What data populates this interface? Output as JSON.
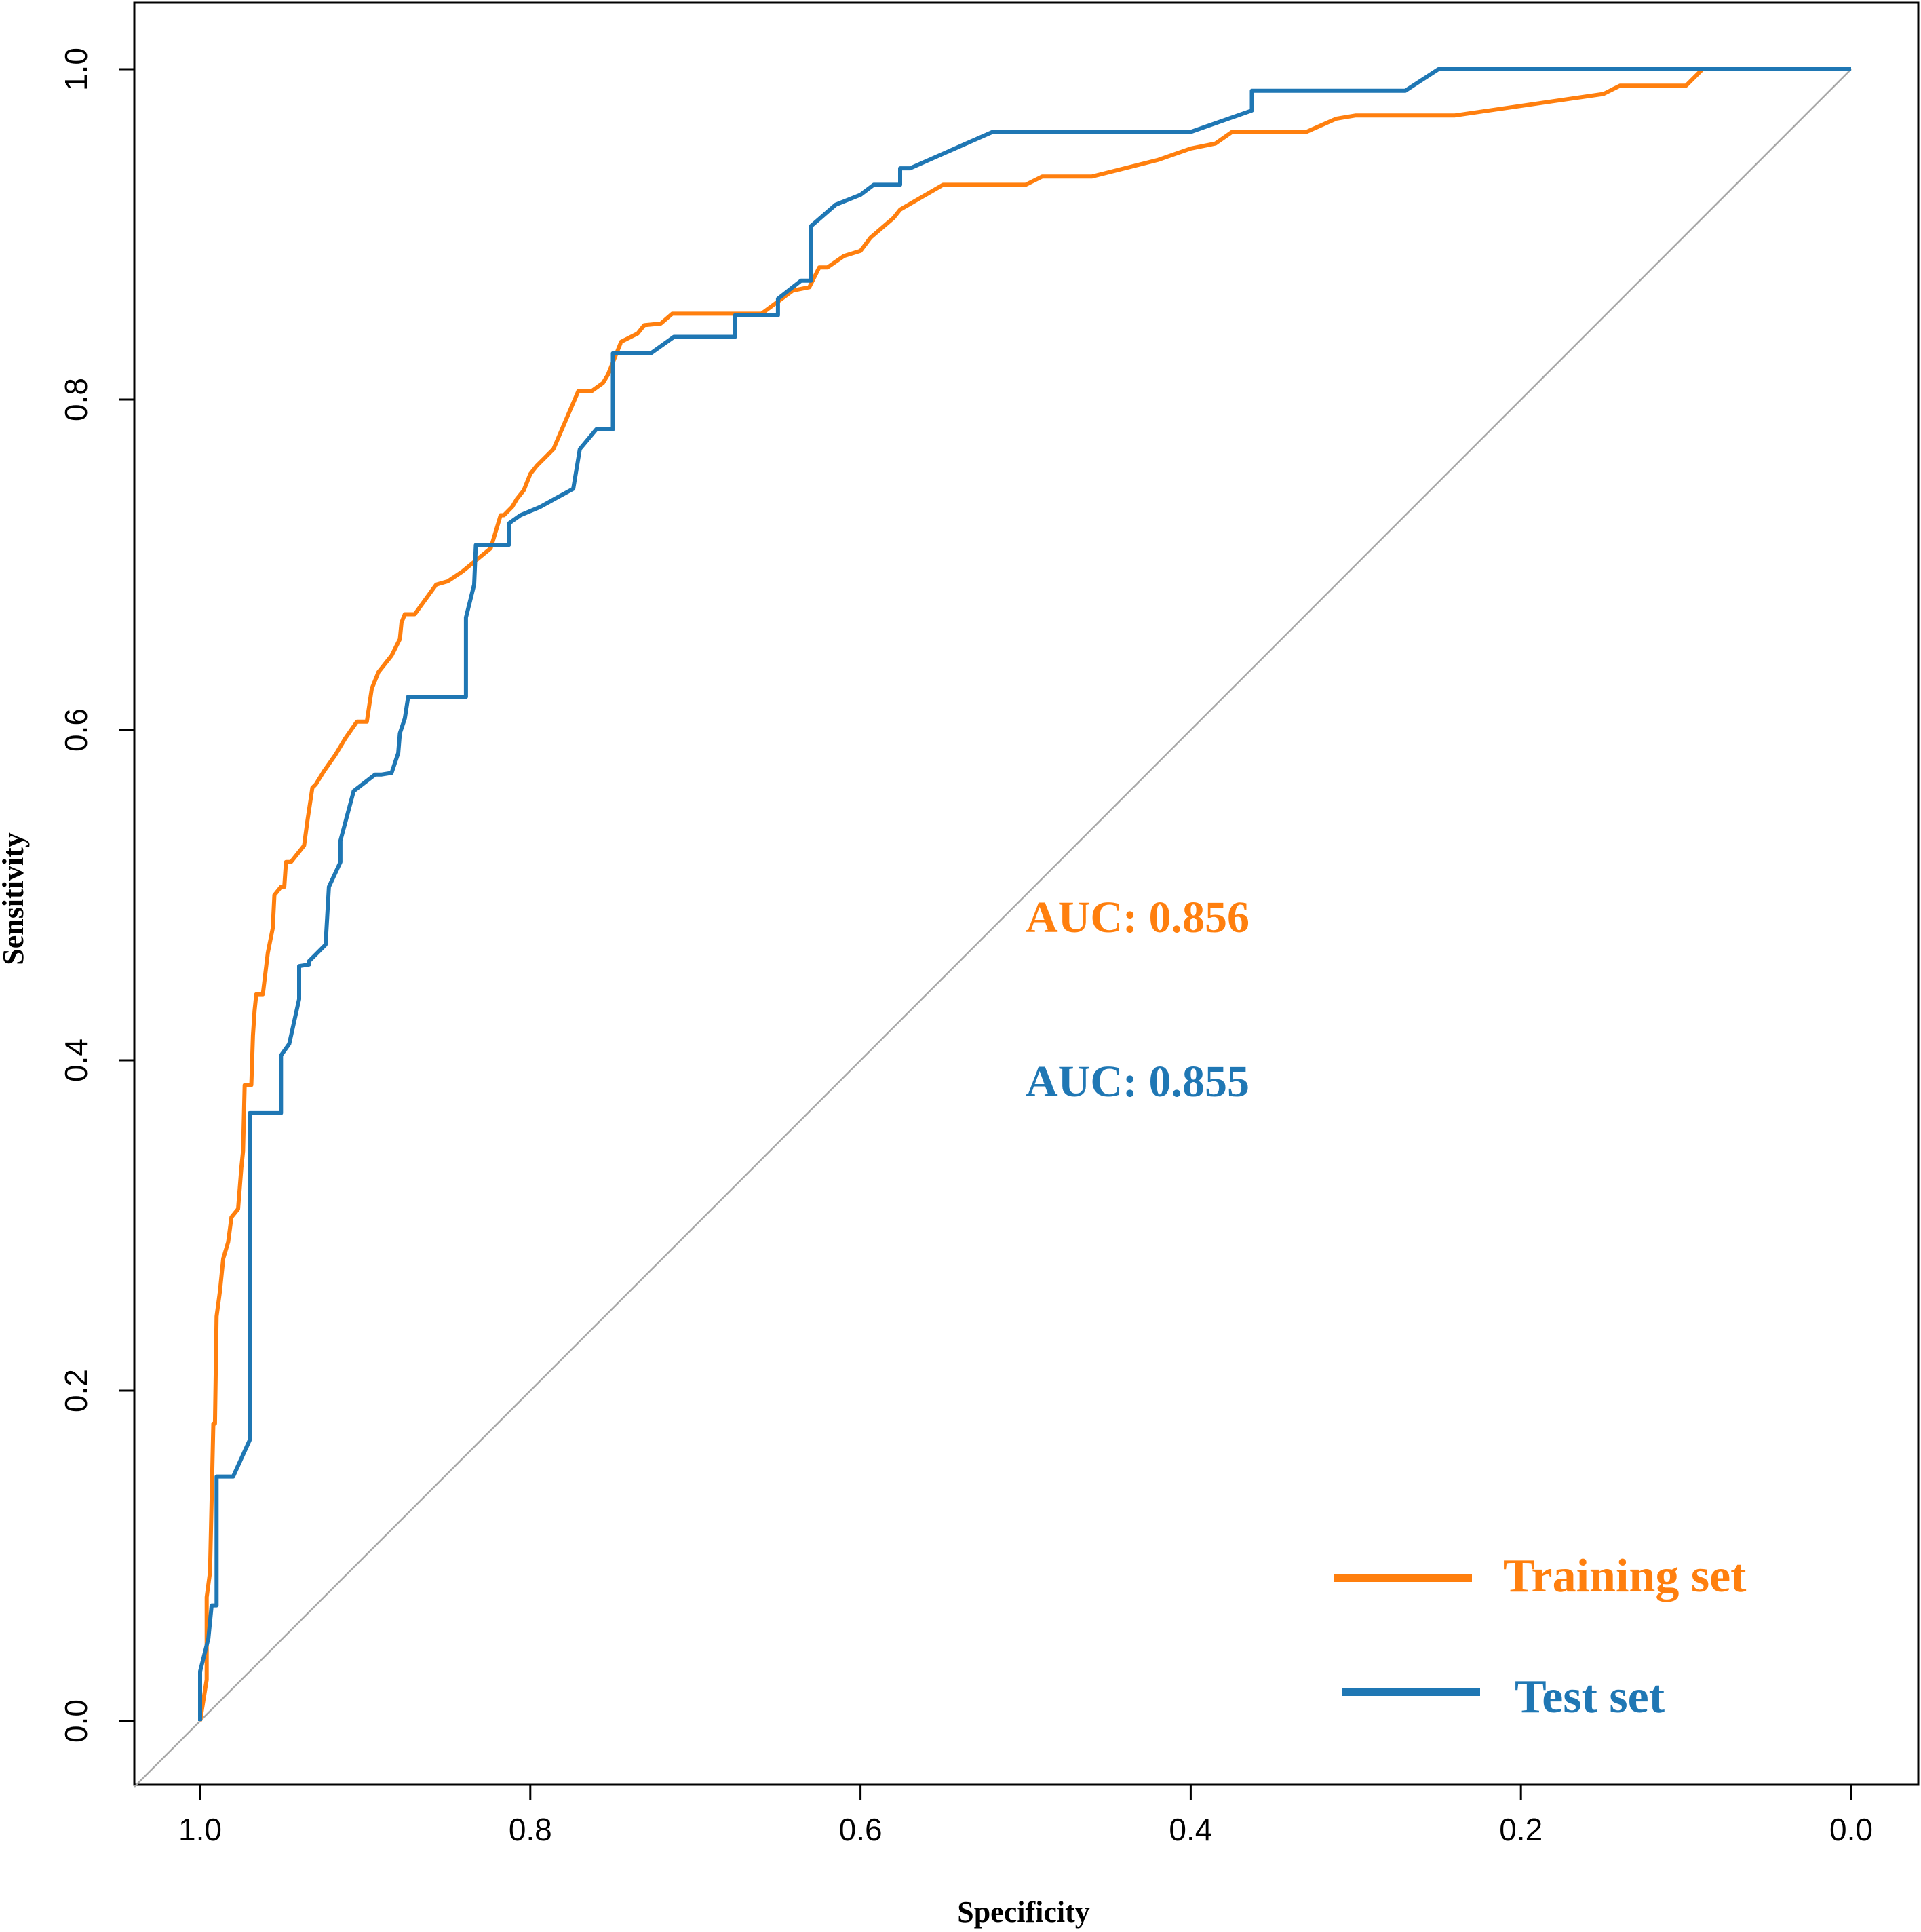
{
  "chart_data": {
    "type": "line",
    "title": "",
    "xlabel": "Specificity",
    "ylabel": "Sensitivity",
    "xlim": [
      1.0,
      0.0
    ],
    "ylim": [
      0.0,
      1.0
    ],
    "x_reversed": true,
    "x_ticks": [
      1.0,
      0.8,
      0.6,
      0.4,
      0.2,
      0.0
    ],
    "x_tick_labels": [
      "1.0",
      "0.8",
      "0.6",
      "0.4",
      "0.2",
      "0.0"
    ],
    "y_ticks": [
      0.0,
      0.2,
      0.4,
      0.6,
      0.8,
      1.0
    ],
    "y_tick_labels": [
      "0.0",
      "0.2",
      "0.4",
      "0.6",
      "0.8",
      "1.0"
    ],
    "grid": false,
    "legend_position": "bottom-right",
    "reference_line": {
      "from": [
        1.0,
        0.0
      ],
      "to": [
        0.0,
        1.0
      ],
      "color": "#a0a0a0"
    },
    "series": [
      {
        "name": "Training set",
        "color": "#ff7f0e",
        "auc_label": "AUC: 0.856",
        "specificity": [
          1.0,
          0.996,
          0.996,
          0.994,
          0.992,
          0.991,
          0.99,
          0.988,
          0.986,
          0.983,
          0.981,
          0.977,
          0.975,
          0.974,
          0.973,
          0.969,
          0.968,
          0.967,
          0.966,
          0.962,
          0.959,
          0.958,
          0.956,
          0.955,
          0.951,
          0.949,
          0.948,
          0.945,
          0.941,
          0.937,
          0.935,
          0.932,
          0.93,
          0.925,
          0.918,
          0.912,
          0.905,
          0.899,
          0.896,
          0.892,
          0.884,
          0.879,
          0.878,
          0.876,
          0.87,
          0.857,
          0.85,
          0.841,
          0.824,
          0.818,
          0.816,
          0.811,
          0.808,
          0.804,
          0.8,
          0.796,
          0.791,
          0.786,
          0.771,
          0.763,
          0.756,
          0.753,
          0.749,
          0.745,
          0.735,
          0.731,
          0.721,
          0.714,
          0.699,
          0.66,
          0.641,
          0.631,
          0.625,
          0.62,
          0.61,
          0.6,
          0.594,
          0.58,
          0.576,
          0.55,
          0.5,
          0.49,
          0.46,
          0.42,
          0.4,
          0.385,
          0.375,
          0.33,
          0.312,
          0.3,
          0.24,
          0.15,
          0.14,
          0.1,
          0.09,
          0.0
        ],
        "sensitivity": [
          0.0,
          0.025,
          0.075,
          0.09,
          0.18,
          0.18,
          0.245,
          0.26,
          0.28,
          0.29,
          0.305,
          0.31,
          0.335,
          0.345,
          0.385,
          0.385,
          0.415,
          0.43,
          0.44,
          0.44,
          0.465,
          0.47,
          0.48,
          0.5,
          0.505,
          0.505,
          0.52,
          0.52,
          0.525,
          0.53,
          0.545,
          0.565,
          0.567,
          0.575,
          0.585,
          0.595,
          0.605,
          0.605,
          0.625,
          0.635,
          0.645,
          0.655,
          0.665,
          0.67,
          0.67,
          0.688,
          0.69,
          0.696,
          0.71,
          0.73,
          0.73,
          0.735,
          0.74,
          0.745,
          0.755,
          0.76,
          0.765,
          0.77,
          0.805,
          0.805,
          0.81,
          0.815,
          0.825,
          0.835,
          0.84,
          0.845,
          0.846,
          0.852,
          0.852,
          0.852,
          0.866,
          0.868,
          0.88,
          0.88,
          0.887,
          0.89,
          0.898,
          0.91,
          0.915,
          0.93,
          0.93,
          0.935,
          0.935,
          0.945,
          0.952,
          0.955,
          0.962,
          0.962,
          0.97,
          0.972,
          0.972,
          0.985,
          0.99,
          0.99,
          1.0,
          1.0
        ]
      },
      {
        "name": "Test set",
        "color": "#1f77b4",
        "auc_label": "AUC: 0.855",
        "specificity": [
          1.0,
          1.0,
          0.995,
          0.993,
          0.99,
          0.99,
          0.98,
          0.97,
          0.97,
          0.951,
          0.951,
          0.946,
          0.94,
          0.94,
          0.934,
          0.934,
          0.924,
          0.922,
          0.922,
          0.915,
          0.915,
          0.907,
          0.907,
          0.894,
          0.89,
          0.884,
          0.88,
          0.879,
          0.876,
          0.874,
          0.839,
          0.839,
          0.834,
          0.833,
          0.813,
          0.813,
          0.806,
          0.794,
          0.785,
          0.774,
          0.77,
          0.76,
          0.75,
          0.75,
          0.727,
          0.713,
          0.676,
          0.676,
          0.65,
          0.65,
          0.636,
          0.63,
          0.63,
          0.615,
          0.6,
          0.592,
          0.576,
          0.576,
          0.57,
          0.52,
          0.4,
          0.363,
          0.363,
          0.27,
          0.25,
          0.0
        ],
        "sensitivity": [
          0.0,
          0.03,
          0.05,
          0.07,
          0.07,
          0.148,
          0.148,
          0.17,
          0.368,
          0.368,
          0.403,
          0.41,
          0.437,
          0.457,
          0.458,
          0.46,
          0.47,
          0.505,
          0.505,
          0.52,
          0.533,
          0.563,
          0.563,
          0.573,
          0.573,
          0.574,
          0.586,
          0.598,
          0.607,
          0.62,
          0.62,
          0.668,
          0.688,
          0.712,
          0.712,
          0.725,
          0.73,
          0.735,
          0.74,
          0.746,
          0.77,
          0.782,
          0.782,
          0.828,
          0.828,
          0.838,
          0.838,
          0.851,
          0.851,
          0.861,
          0.872,
          0.872,
          0.905,
          0.918,
          0.924,
          0.93,
          0.93,
          0.94,
          0.94,
          0.962,
          0.962,
          0.975,
          0.987,
          0.987,
          1.0,
          1.0
        ]
      }
    ]
  }
}
